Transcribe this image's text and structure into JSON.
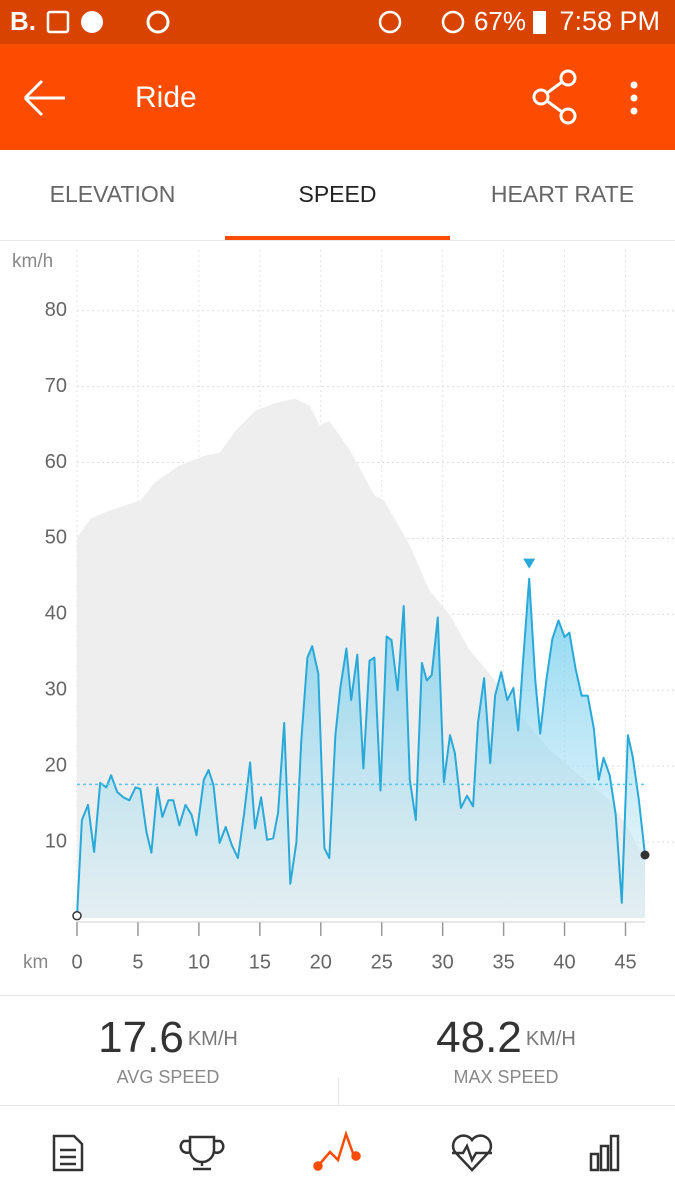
{
  "status_bar": {
    "carrier": "B.",
    "battery": "67%",
    "time": "7:58 PM"
  },
  "app_bar": {
    "title": "Ride"
  },
  "tabs": {
    "items": [
      "ELEVATION",
      "SPEED",
      "HEART RATE"
    ],
    "selected": 1
  },
  "chart_data": {
    "type": "line",
    "y_label": "km/h",
    "x_label": "km",
    "xlim": [
      0,
      46.6
    ],
    "ylim": [
      0,
      88
    ],
    "xticks": [
      0,
      5,
      10,
      15,
      20,
      25,
      30,
      35,
      40,
      45
    ],
    "yticks": [
      10,
      20,
      30,
      40,
      50,
      60,
      70,
      80
    ],
    "grid": true,
    "elevation": {
      "color": "#eeeeee",
      "x": [
        0,
        1.1,
        2.7,
        5.2,
        6.4,
        8.4,
        10.5,
        11.7,
        13,
        14.6,
        16.2,
        17.9,
        19.1,
        19.9,
        20.7,
        22.4,
        24.4,
        25.2,
        27.3,
        28.9,
        30.6,
        32.2,
        34.3,
        36.3,
        38.8,
        41.2,
        43.7,
        45.3,
        46.6
      ],
      "values": [
        50.1,
        52.6,
        53.7,
        55,
        57.4,
        59.6,
        60.9,
        61.3,
        64.2,
        66.8,
        67.8,
        68.4,
        67.5,
        64.9,
        65.5,
        61.6,
        55.7,
        55,
        49.1,
        43.2,
        39.9,
        35.3,
        31.3,
        26.7,
        22.1,
        18.8,
        15.5,
        11.6,
        7.6
      ]
    },
    "speed": {
      "color": "#29a9d9",
      "x": [
        0,
        0.4,
        0.9,
        1.4,
        1.9,
        2.4,
        2.8,
        3.3,
        3.8,
        4.3,
        4.8,
        5.2,
        5.7,
        6.1,
        6.6,
        7,
        7.5,
        7.9,
        8.4,
        8.9,
        9.4,
        9.8,
        10.4,
        10.8,
        11.2,
        11.7,
        12.2,
        12.7,
        13.2,
        13.7,
        14.2,
        14.6,
        15.1,
        15.6,
        16.1,
        16.5,
        17,
        17.5,
        18,
        18.4,
        18.9,
        19.3,
        19.8,
        20.3,
        20.7,
        21.2,
        21.6,
        22.1,
        22.5,
        23,
        23.5,
        24,
        24.4,
        24.9,
        25.4,
        25.8,
        26.3,
        26.8,
        27.3,
        27.8,
        28.3,
        28.7,
        29.1,
        29.6,
        30.1,
        30.6,
        31,
        31.5,
        32,
        32.5,
        32.9,
        33.4,
        33.9,
        34.3,
        34.8,
        35.3,
        35.8,
        36.2,
        36.6,
        37.1,
        37.6,
        38,
        38.5,
        39,
        39.5,
        40,
        40.4,
        40.9,
        41.4,
        41.9,
        42.4,
        42.8,
        43.2,
        43.7,
        44.2,
        44.7,
        45.2,
        45.6,
        46.1,
        46.6
      ],
      "values": [
        0.3,
        12.9,
        14.9,
        8.7,
        17.8,
        17.2,
        18.8,
        16.6,
        15.9,
        15.5,
        17.2,
        17,
        11.3,
        8.6,
        17.2,
        13.3,
        15.5,
        15.5,
        12.2,
        14.9,
        13.6,
        10.9,
        18.2,
        19.5,
        17.5,
        9.9,
        12,
        9.6,
        7.9,
        13.6,
        20.5,
        11.8,
        15.9,
        10.3,
        10.5,
        13.9,
        25.7,
        4.5,
        10,
        23.4,
        34.3,
        35.8,
        32.2,
        9.2,
        7.9,
        24.1,
        30.3,
        35.5,
        28.7,
        34.7,
        19.7,
        33.9,
        34.3,
        16.8,
        37.1,
        36.6,
        30,
        41.1,
        18.2,
        12.9,
        33.6,
        31.3,
        32,
        39.6,
        17.9,
        24.1,
        21.7,
        14.5,
        16.1,
        14.7,
        25.8,
        31.6,
        20.4,
        29.3,
        32.4,
        28.7,
        30.3,
        24.7,
        33.9,
        44.7,
        31.3,
        24.3,
        31.3,
        36.8,
        39.2,
        37,
        37.6,
        32.9,
        29.3,
        29.3,
        25,
        18.2,
        21.1,
        18.8,
        13.6,
        2,
        24.1,
        21.2,
        15.5,
        8.3
      ]
    }
  },
  "stats": {
    "avg": {
      "value": 17.6,
      "unit": "KM/H",
      "label": "AVG SPEED"
    },
    "max": {
      "value": 48.2,
      "unit": "KM/H",
      "label": "MAX SPEED"
    }
  }
}
